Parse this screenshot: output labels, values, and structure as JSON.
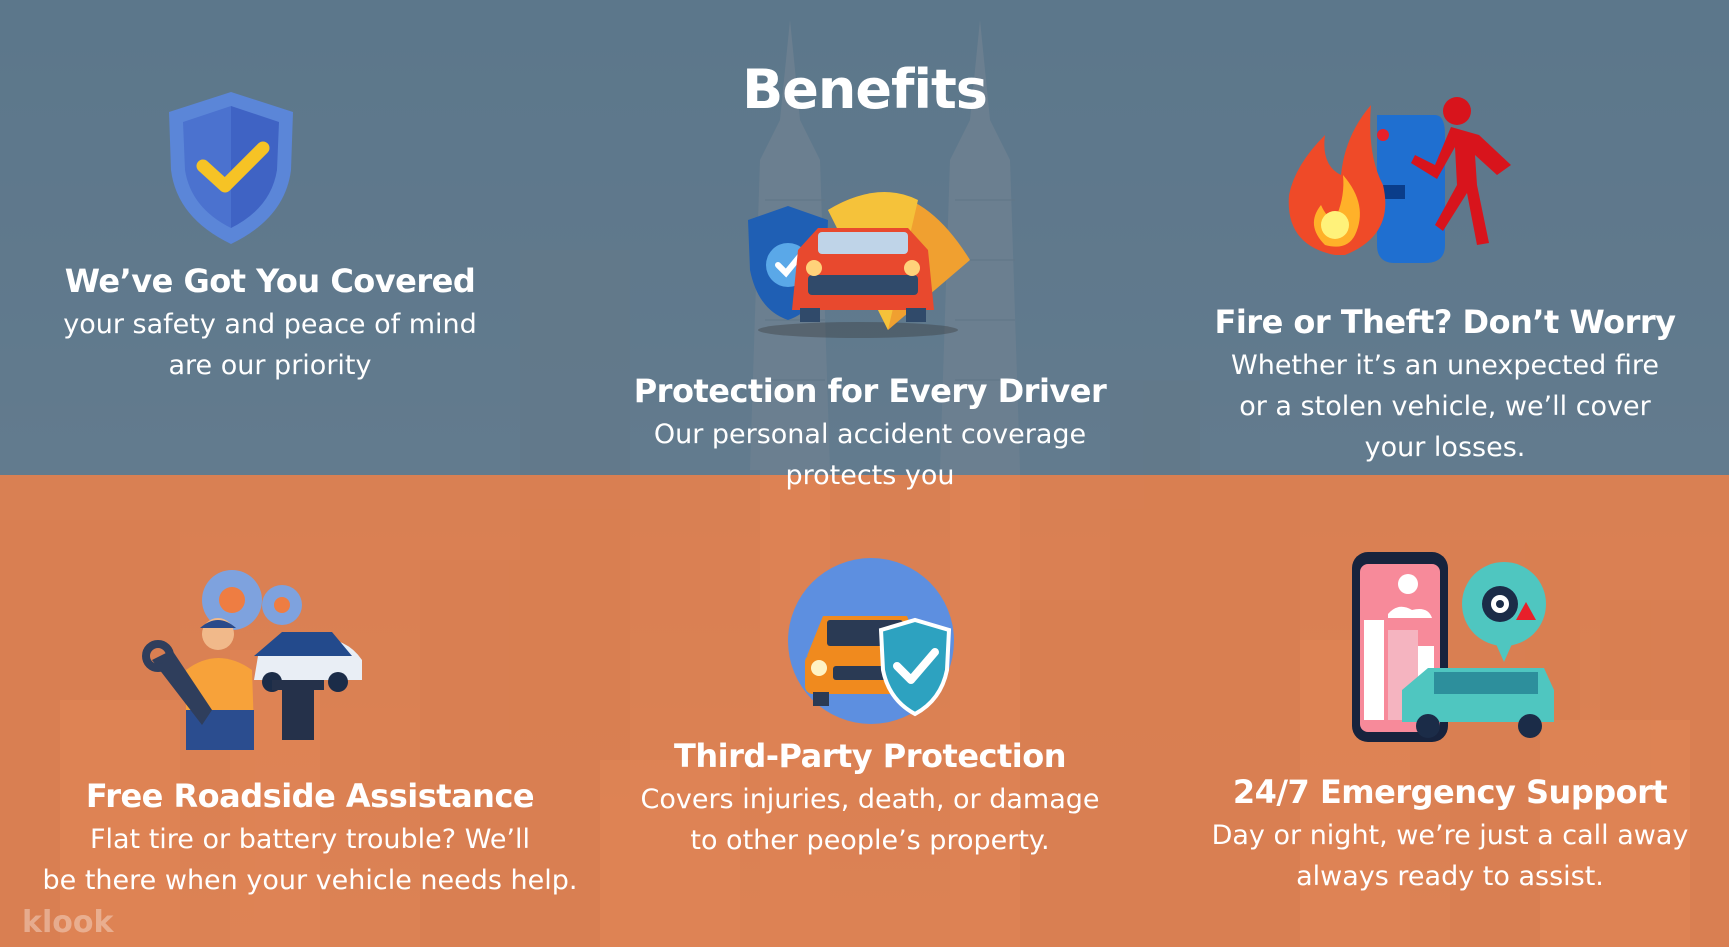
{
  "title": "Benefits",
  "benefits": [
    {
      "title": "We’ve Got You Covered",
      "line1": "your safety and peace of mind",
      "line2": "are our priority"
    },
    {
      "title": "Protection for Every Driver",
      "line1": "Our personal accident coverage",
      "line2": "protects you"
    },
    {
      "title": "Fire or Theft? Don’t Worry",
      "line1": "Whether it’s an unexpected fire",
      "line2": "or a stolen vehicle, we’ll cover",
      "line3": "your losses."
    },
    {
      "title": "Free Roadside Assistance",
      "line1": "Flat tire or battery trouble? We’ll",
      "line2": "be there when your vehicle needs help."
    },
    {
      "title": "Third-Party Protection",
      "line1": "Covers injuries, death, or damage",
      "line2": "to other people’s property."
    },
    {
      "title": "24/7 Emergency Support",
      "line1": "Day or night, we’re just a call away",
      "line2": "always ready to assist."
    }
  ],
  "watermark": "klook",
  "icons": [
    "shield-check-icon",
    "car-umbrella-shield-icon",
    "fire-theft-icon",
    "mechanic-roadside-icon",
    "car-shield-badge-icon",
    "phone-emergency-support-icon"
  ],
  "colors": {
    "top_overlay": "#4e6a80",
    "bottom_overlay": "#ee7d42",
    "text": "#ffffff"
  }
}
